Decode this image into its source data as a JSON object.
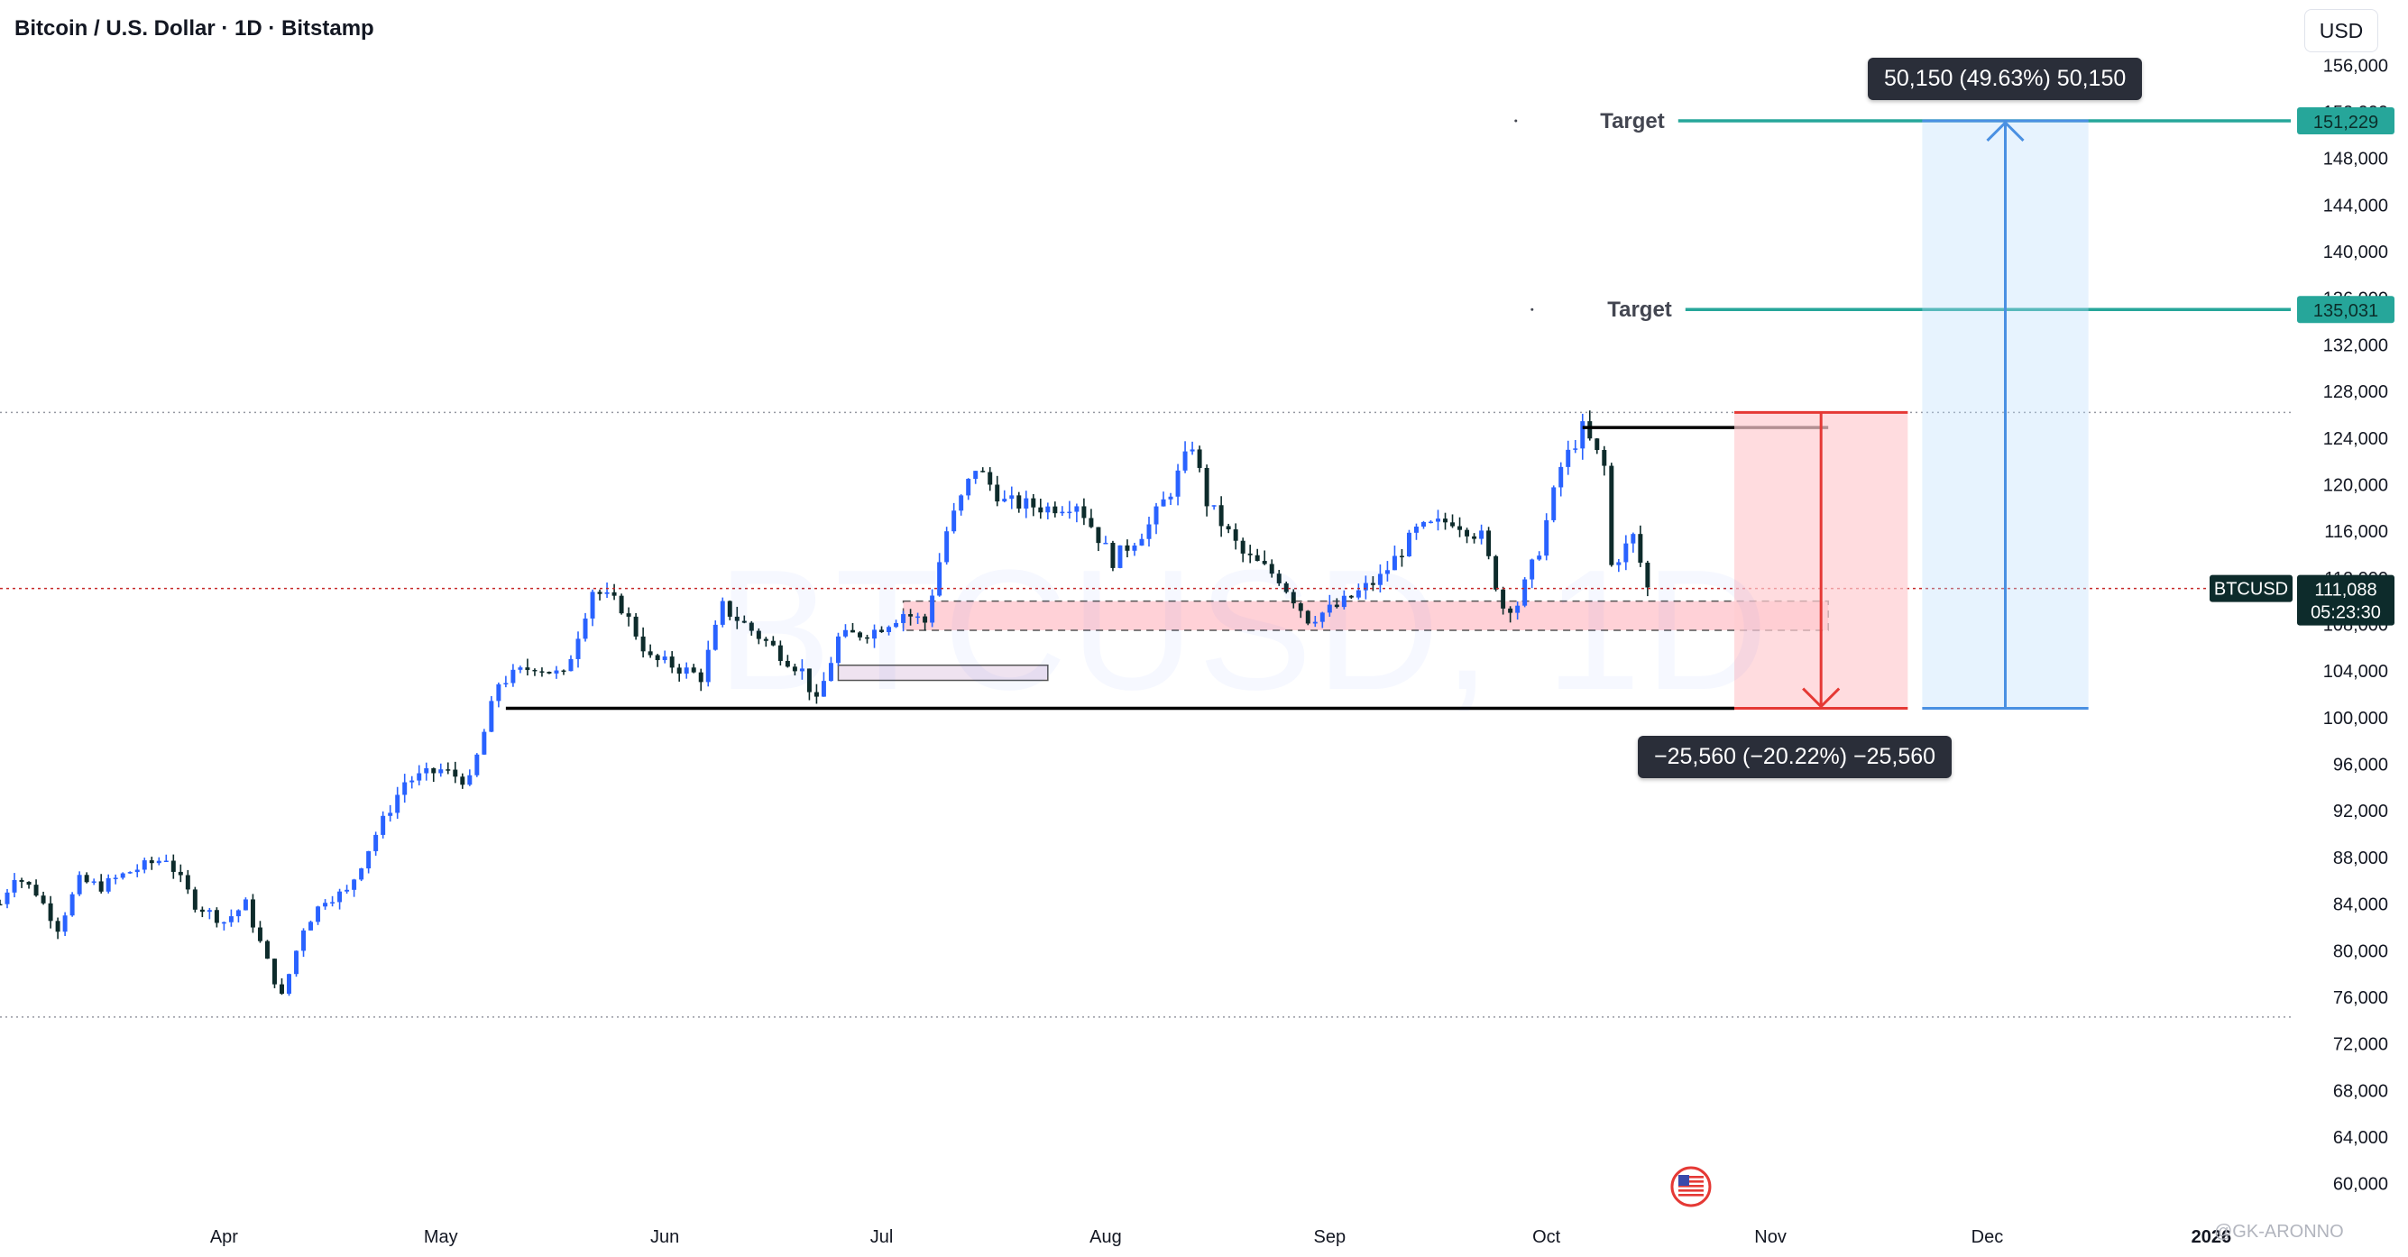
{
  "header": {
    "title": "Bitcoin / U.S. Dollar · 1D · Bitstamp",
    "currency": "USD",
    "watermark": "BTCUSD, 1D",
    "credit": "@GK-ARONNO"
  },
  "measurements": {
    "upper": "50,150 (49.63%) 50,150",
    "lower": "−25,560 (−20.22%) −25,560"
  },
  "targets": [
    {
      "label": "Target",
      "price": 151229,
      "price_label": "151,229"
    },
    {
      "label": "Target",
      "price": 135031,
      "price_label": "135,031"
    }
  ],
  "current_price": {
    "symbol": "BTCUSD",
    "price": 111088,
    "price_label": "111,088",
    "countdown": "05:23:30"
  },
  "colors": {
    "bull": "#2962ff",
    "bear": "#0d2b2b",
    "target": "#26a69a",
    "short_zone": "#ffcdd2",
    "long_zone": "#bbdefb",
    "support_zone": "#ffb3bd",
    "price_line": "#c62828"
  },
  "chart_data": {
    "type": "candlestick",
    "title": "Bitcoin / U.S. Dollar · 1D · Bitstamp",
    "ylim": [
      57500,
      158500
    ],
    "y_ticks": [
      60000,
      64000,
      68000,
      72000,
      76000,
      80000,
      84000,
      88000,
      92000,
      96000,
      100000,
      104000,
      108000,
      112000,
      116000,
      120000,
      124000,
      128000,
      132000,
      136000,
      140000,
      144000,
      148000,
      152000,
      156000
    ],
    "y_tick_labels": [
      "60,000",
      "64,000",
      "68,000",
      "72,000",
      "76,000",
      "80,000",
      "84,000",
      "88,000",
      "92,000",
      "96,000",
      "100,000",
      "104,000",
      "108,000",
      "112,000",
      "116,000",
      "120,000",
      "124,000",
      "128,000",
      "132,000",
      "136,000",
      "140,000",
      "144,000",
      "148,000",
      "152,000",
      "156,000"
    ],
    "x_start": "2025-03-01",
    "x_end": "2026-01-12",
    "months": [
      {
        "label": "Apr",
        "date": "2025-04-01"
      },
      {
        "label": "May",
        "date": "2025-05-01"
      },
      {
        "label": "Jun",
        "date": "2025-06-01"
      },
      {
        "label": "Jul",
        "date": "2025-07-01"
      },
      {
        "label": "Aug",
        "date": "2025-08-01"
      },
      {
        "label": "Sep",
        "date": "2025-09-01"
      },
      {
        "label": "Oct",
        "date": "2025-10-01"
      },
      {
        "label": "Nov",
        "date": "2025-11-01"
      },
      {
        "label": "Dec",
        "date": "2025-12-01"
      },
      {
        "label": "2026",
        "date": "2026-01-01"
      }
    ],
    "close_path": [
      [
        "2025-03-01",
        84000
      ],
      [
        "2025-03-03",
        86500
      ],
      [
        "2025-03-06",
        85000
      ],
      [
        "2025-03-09",
        82000
      ],
      [
        "2025-03-12",
        86000
      ],
      [
        "2025-03-15",
        85500
      ],
      [
        "2025-03-19",
        86800
      ],
      [
        "2025-03-24",
        88000
      ],
      [
        "2025-03-28",
        84000
      ],
      [
        "2025-04-01",
        82500
      ],
      [
        "2025-04-04",
        84000
      ],
      [
        "2025-04-07",
        79000
      ],
      [
        "2025-04-09",
        76000
      ],
      [
        "2025-04-12",
        82000
      ],
      [
        "2025-04-15",
        84500
      ],
      [
        "2025-04-18",
        85000
      ],
      [
        "2025-04-22",
        90000
      ],
      [
        "2025-04-26",
        94500
      ],
      [
        "2025-05-01",
        95500
      ],
      [
        "2025-05-05",
        94500
      ],
      [
        "2025-05-09",
        103000
      ],
      [
        "2025-05-14",
        104500
      ],
      [
        "2025-05-18",
        103500
      ],
      [
        "2025-05-22",
        111000
      ],
      [
        "2025-05-26",
        109500
      ],
      [
        "2025-05-30",
        105000
      ],
      [
        "2025-06-02",
        104500
      ],
      [
        "2025-06-06",
        103500
      ],
      [
        "2025-06-09",
        109500
      ],
      [
        "2025-06-12",
        108000
      ],
      [
        "2025-06-16",
        106000
      ],
      [
        "2025-06-20",
        104000
      ],
      [
        "2025-06-22",
        101200
      ],
      [
        "2025-06-25",
        106800
      ],
      [
        "2025-06-30",
        107500
      ],
      [
        "2025-07-04",
        109000
      ],
      [
        "2025-07-07",
        108200
      ],
      [
        "2025-07-10",
        116000
      ],
      [
        "2025-07-14",
        121500
      ],
      [
        "2025-07-18",
        118500
      ],
      [
        "2025-07-24",
        118000
      ],
      [
        "2025-07-28",
        118500
      ],
      [
        "2025-08-02",
        113500
      ],
      [
        "2025-08-07",
        116500
      ],
      [
        "2025-08-10",
        119500
      ],
      [
        "2025-08-13",
        123500
      ],
      [
        "2025-08-15",
        118500
      ],
      [
        "2025-08-20",
        114000
      ],
      [
        "2025-08-25",
        112000
      ],
      [
        "2025-08-29",
        108500
      ],
      [
        "2025-09-02",
        109500
      ],
      [
        "2025-09-08",
        112000
      ],
      [
        "2025-09-13",
        116000
      ],
      [
        "2025-09-18",
        117000
      ],
      [
        "2025-09-22",
        115500
      ],
      [
        "2025-09-25",
        109500
      ],
      [
        "2025-09-27",
        109800
      ],
      [
        "2025-09-30",
        114500
      ],
      [
        "2025-10-03",
        121500
      ],
      [
        "2025-10-06",
        124800
      ],
      [
        "2025-10-09",
        121500
      ],
      [
        "2025-10-10",
        113000
      ],
      [
        "2025-10-13",
        115500
      ],
      [
        "2025-10-15",
        111088
      ]
    ],
    "support_levels": [
      {
        "price": 100800,
        "from": "2025-05-10",
        "to": "2025-10-27"
      },
      {
        "price": 124900,
        "from": "2025-10-06",
        "to": "2025-11-09"
      }
    ],
    "zones": [
      {
        "name": "support",
        "top": 110000,
        "bottom": 107500,
        "from": "2025-07-04",
        "to": "2025-11-09"
      },
      {
        "name": "order-block",
        "top": 104500,
        "bottom": 103200,
        "from": "2025-06-25",
        "to": "2025-07-24"
      }
    ],
    "dotted_levels": [
      126200,
      74300
    ],
    "short_projection": {
      "from": "2025-10-27",
      "to": "2025-11-20",
      "top": 126200,
      "bottom": 100800
    },
    "long_projection": {
      "from": "2025-11-22",
      "to": "2025-12-15",
      "top": 151229,
      "bottom": 100800
    }
  }
}
